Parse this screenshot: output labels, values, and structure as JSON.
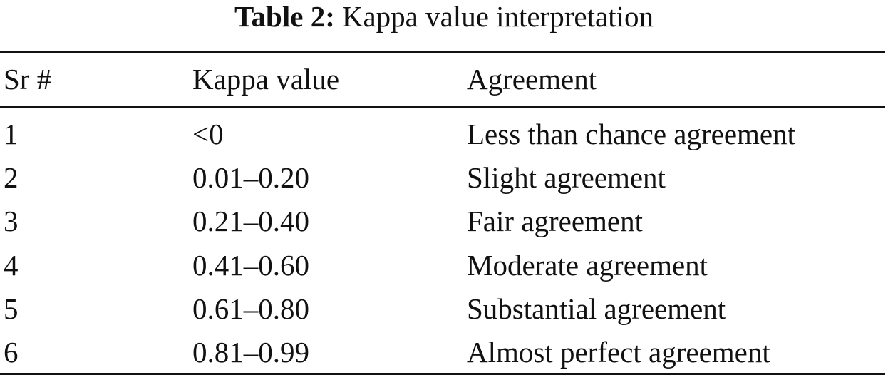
{
  "caption": {
    "label": "Table 2:",
    "text": "Kappa value interpretation"
  },
  "table": {
    "headers": [
      "Sr #",
      "Kappa value",
      "Agreement"
    ],
    "rows": [
      [
        "1",
        "<0",
        "Less than chance agreement"
      ],
      [
        "2",
        "0.01–0.20",
        "Slight agreement"
      ],
      [
        "3",
        "0.21–0.40",
        "Fair agreement"
      ],
      [
        "4",
        "0.41–0.60",
        "Moderate agreement"
      ],
      [
        "5",
        "0.61–0.80",
        "Substantial agreement"
      ],
      [
        "6",
        "0.81–0.99",
        "Almost perfect agreement"
      ]
    ]
  }
}
